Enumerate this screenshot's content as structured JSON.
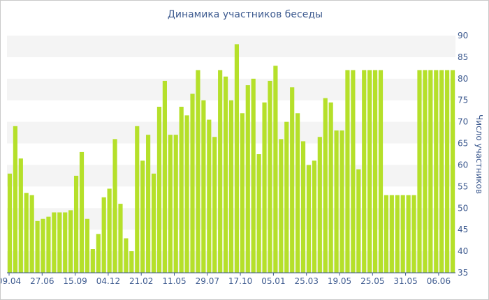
{
  "chart_data": {
    "type": "bar",
    "title": "Динамика участников беседы",
    "xlabel": "",
    "ylabel": "Число участников",
    "ylim": [
      35,
      90
    ],
    "y_ticks": [
      35,
      40,
      45,
      50,
      55,
      60,
      65,
      70,
      75,
      80,
      85,
      90
    ],
    "y_axis_side": "right",
    "grid": "alternating horizontal bands",
    "x_tick_labels": [
      "09.04",
      "27.06",
      "15.09",
      "04.12",
      "21.02",
      "11.05",
      "29.07",
      "17.10",
      "05.01",
      "25.03",
      "19.05",
      "25.05",
      "31.05",
      "06.06"
    ],
    "bar_color": "#b5e02a",
    "band_color": "#f4f4f4",
    "text_color": "#3d5a8f",
    "series": [
      {
        "values": [
          58,
          69,
          61.5,
          53.5,
          53,
          47,
          47.5,
          48,
          49,
          49,
          49,
          49.5,
          57.5,
          63,
          47.5,
          40.5,
          44,
          52.5,
          54.5,
          66,
          51,
          43,
          40,
          69,
          61,
          67,
          58,
          73.5,
          79.5,
          67,
          67,
          73.5,
          71.5,
          76.5,
          82,
          75,
          70.5,
          66.5,
          82,
          80.5,
          75,
          88,
          72,
          78.5,
          80,
          62.5,
          74.5,
          79.5,
          83,
          66,
          70,
          78,
          72,
          65.5,
          60,
          61,
          66.5,
          75.5,
          74.5,
          68,
          68,
          82,
          82,
          59,
          82,
          82,
          82,
          82,
          53,
          53,
          53,
          53,
          53,
          53,
          82,
          82,
          82,
          82,
          82,
          82,
          82
        ]
      }
    ]
  }
}
